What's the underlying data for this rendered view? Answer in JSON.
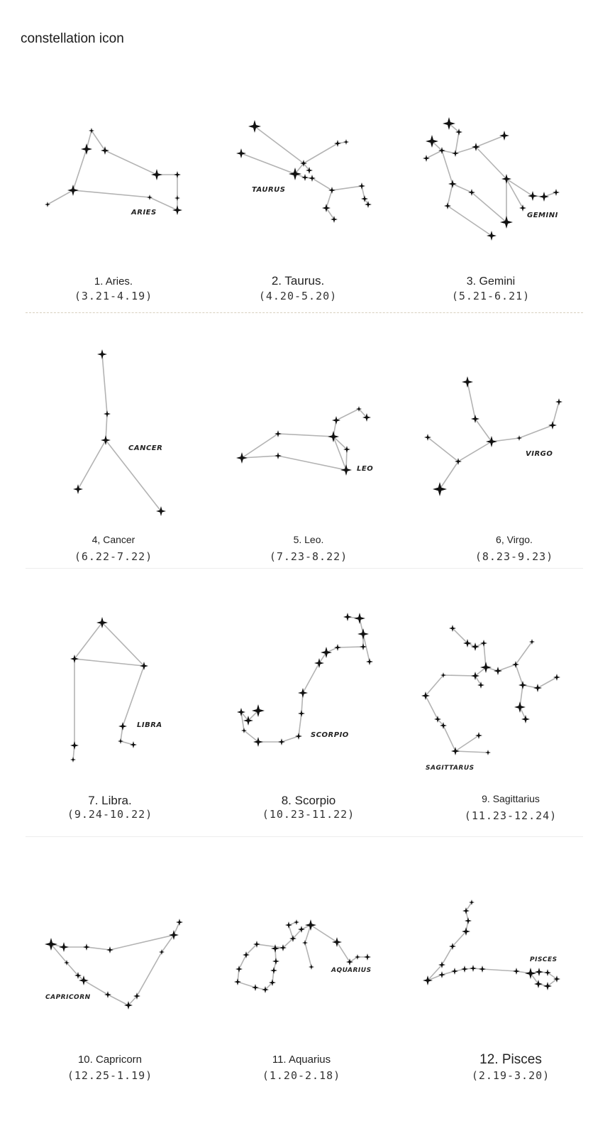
{
  "title": "constellation icon",
  "constellations": [
    {
      "name": "1. Aries.",
      "dates": "(3.21-4.19)",
      "label": "ARIES"
    },
    {
      "name": "2. Taurus.",
      "dates": "(4.20-5.20)",
      "label": "TAURUS"
    },
    {
      "name": "3. Gemini",
      "dates": "(5.21-6.21)",
      "label": "GEMINI"
    },
    {
      "name": "4, Cancer",
      "dates": "(6.22-7.22)",
      "label": "CANCER"
    },
    {
      "name": "5. Leo.",
      "dates": "(7.23-8.22)",
      "label": "LEO"
    },
    {
      "name": "6, Virgo.",
      "dates": "(8.23-9.23)",
      "label": "VIRGO"
    },
    {
      "name": "7. Libra.",
      "dates": "(9.24-10.22)",
      "label": "LIBRA"
    },
    {
      "name": "8. Scorpio",
      "dates": "(10.23-11.22)",
      "label": "SCORPIO"
    },
    {
      "name": "9. Sagittarius",
      "dates": "(11.23-12.24)",
      "label": "SAGITTARUS"
    },
    {
      "name": "10. Capricorn",
      "dates": "(12.25-1.19)",
      "label": "CAPRICORN"
    },
    {
      "name": "11. Aquarius",
      "dates": "(1.20-2.18)",
      "label": "AQUARIUS"
    },
    {
      "name": "12. Pisces",
      "dates": "(2.19-3.20)",
      "label": "PISCES"
    }
  ]
}
